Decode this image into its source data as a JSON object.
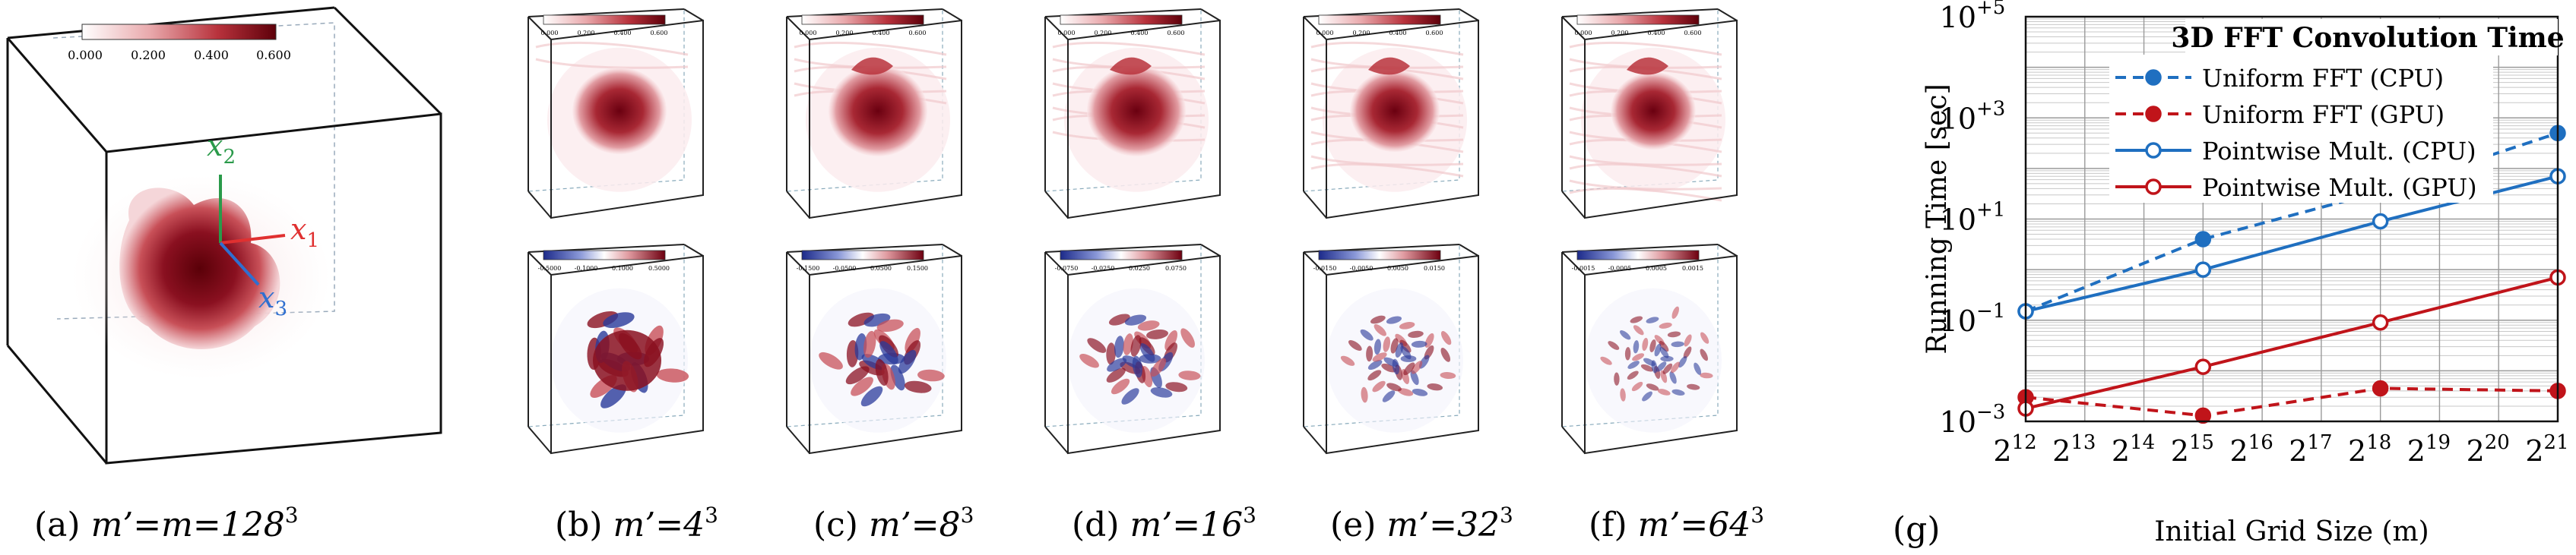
{
  "panels": [
    {
      "id": "a",
      "caption": "(a) m′=m=128³",
      "caption_prefix": "(a)",
      "caption_body": "m’=m=128",
      "caption_exp": "3",
      "colorbar_ticks": [
        "0.000",
        "0.200",
        "0.400",
        "0.600"
      ],
      "axis_labels": {
        "x1": "x",
        "x1_sub": "1",
        "x2": "x",
        "x2_sub": "2",
        "x3": "x",
        "x3_sub": "3"
      }
    },
    {
      "id": "b",
      "caption_prefix": "(b)",
      "caption_body": "m’=4",
      "caption_exp": "3",
      "top_ticks": [
        "0.000",
        "0.200",
        "0.400",
        "0.600"
      ],
      "bottom_ticks": [
        "-0.5000",
        "-0.1000",
        "0.1000",
        "0.5000"
      ]
    },
    {
      "id": "c",
      "caption_prefix": "(c)",
      "caption_body": "m’=8",
      "caption_exp": "3",
      "top_ticks": [
        "0.000",
        "0.200",
        "0.400",
        "0.600"
      ],
      "bottom_ticks": [
        "-0.1500",
        "-0.0500",
        "0.0500",
        "0.1500"
      ]
    },
    {
      "id": "d",
      "caption_prefix": "(d)",
      "caption_body": "m’=16",
      "caption_exp": "3",
      "top_ticks": [
        "0.000",
        "0.200",
        "0.400",
        "0.600"
      ],
      "bottom_ticks": [
        "-0.0750",
        "-0.0250",
        "0.0250",
        "0.0750"
      ]
    },
    {
      "id": "e",
      "caption_prefix": "(e)",
      "caption_body": "m’=32",
      "caption_exp": "3",
      "top_ticks": [
        "0.000",
        "0.200",
        "0.400",
        "0.600"
      ],
      "bottom_ticks": [
        "-0.0150",
        "-0.0050",
        "0.0050",
        "0.0150"
      ]
    },
    {
      "id": "f",
      "caption_prefix": "(f)",
      "caption_body": "m’=64",
      "caption_exp": "3",
      "top_ticks": [
        "0.000",
        "0.200",
        "0.400",
        "0.600"
      ],
      "bottom_ticks": [
        "-0.0015",
        "-0.0005",
        "0.0005",
        "0.0015"
      ]
    }
  ],
  "colors": {
    "dark_red": "#6e0010",
    "mid_red": "#c0404a",
    "light_red": "#f3d6d8",
    "blue": "#2a3a9a",
    "cpu_blue": "#1f6fc0",
    "gpu_red": "#c0141a",
    "x1_color": "#e03030",
    "x2_color": "#2a9a4a",
    "x3_color": "#2f6fd0"
  },
  "chart_data": {
    "type": "line",
    "caption": "(g)",
    "title": "3D FFT Convolution Time",
    "xlabel": "Initial Grid Size (m)",
    "ylabel": "Running Time [sec]",
    "x_scale": "log2",
    "y_scale": "log10",
    "x_ticks": [
      {
        "base": "2",
        "exp": "12",
        "value": 4096
      },
      {
        "base": "2",
        "exp": "13",
        "value": 8192
      },
      {
        "base": "2",
        "exp": "14",
        "value": 16384
      },
      {
        "base": "2",
        "exp": "15",
        "value": 32768
      },
      {
        "base": "2",
        "exp": "16",
        "value": 65536
      },
      {
        "base": "2",
        "exp": "17",
        "value": 131072
      },
      {
        "base": "2",
        "exp": "18",
        "value": 262144
      },
      {
        "base": "2",
        "exp": "19",
        "value": 524288
      },
      {
        "base": "2",
        "exp": "20",
        "value": 1048576
      },
      {
        "base": "2",
        "exp": "21",
        "value": 2097152
      }
    ],
    "y_ticks": [
      {
        "base": "10",
        "exp": "−3",
        "value": 0.001
      },
      {
        "base": "10",
        "exp": "−1",
        "value": 0.1
      },
      {
        "base": "10",
        "exp": "+1",
        "value": 10
      },
      {
        "base": "10",
        "exp": "+3",
        "value": 1000
      },
      {
        "base": "10",
        "exp": "+5",
        "value": 100000
      }
    ],
    "xlim": [
      4096,
      2097152
    ],
    "ylim": [
      0.001,
      100000
    ],
    "grid": true,
    "legend_position": "top",
    "series": [
      {
        "name": "Uniform FFT (CPU)",
        "color": "#1f6fc0",
        "dash": true,
        "marker": "filled",
        "x": [
          4096,
          32768,
          262144,
          2097152
        ],
        "y": [
          0.15,
          4.0,
          35,
          500
        ]
      },
      {
        "name": "Uniform FFT (GPU)",
        "color": "#c0141a",
        "dash": true,
        "marker": "filled",
        "x": [
          4096,
          32768,
          262144,
          2097152
        ],
        "y": [
          0.003,
          0.0013,
          0.0045,
          0.004
        ]
      },
      {
        "name": "Pointwise Mult. (CPU)",
        "color": "#1f6fc0",
        "dash": false,
        "marker": "hollow",
        "x": [
          4096,
          32768,
          262144,
          2097152
        ],
        "y": [
          0.15,
          1.0,
          9.0,
          70
        ]
      },
      {
        "name": "Pointwise Mult. (GPU)",
        "color": "#c0141a",
        "dash": false,
        "marker": "hollow",
        "x": [
          4096,
          32768,
          262144,
          2097152
        ],
        "y": [
          0.0018,
          0.012,
          0.09,
          0.7
        ]
      }
    ]
  }
}
